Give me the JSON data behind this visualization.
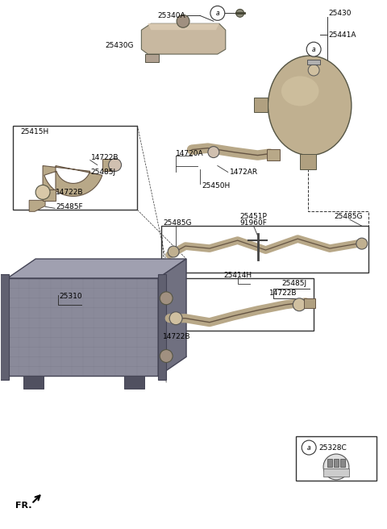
{
  "bg_color": "#ffffff",
  "line_color": "#333333",
  "part_font_size": 6.5,
  "parts_top_reservoir": [
    "25340A",
    "25430G"
  ],
  "parts_top_right": [
    "25430",
    "25441A"
  ],
  "parts_box1": [
    "25415H",
    "14722B",
    "25485J",
    "14722B",
    "25485F"
  ],
  "parts_center": [
    "14720A",
    "1472AR",
    "25450H"
  ],
  "parts_box2": [
    "25485G",
    "91960F"
  ],
  "parts_right_labels": [
    "25451P",
    "25485G"
  ],
  "parts_radiator": [
    "25310"
  ],
  "parts_box3": [
    "25414H",
    "25485J",
    "14722B",
    "14722B"
  ],
  "parts_callout": [
    "25328C"
  ],
  "hose_color": "#b8a888",
  "hose_edge": "#665544",
  "tank_color": "#c0b090",
  "tank_edge": "#555544",
  "box_edge": "#333333",
  "rad_front": "#8a8a9a",
  "rad_top": "#a0a0b0",
  "rad_right": "#707080",
  "rad_edge": "#444455"
}
